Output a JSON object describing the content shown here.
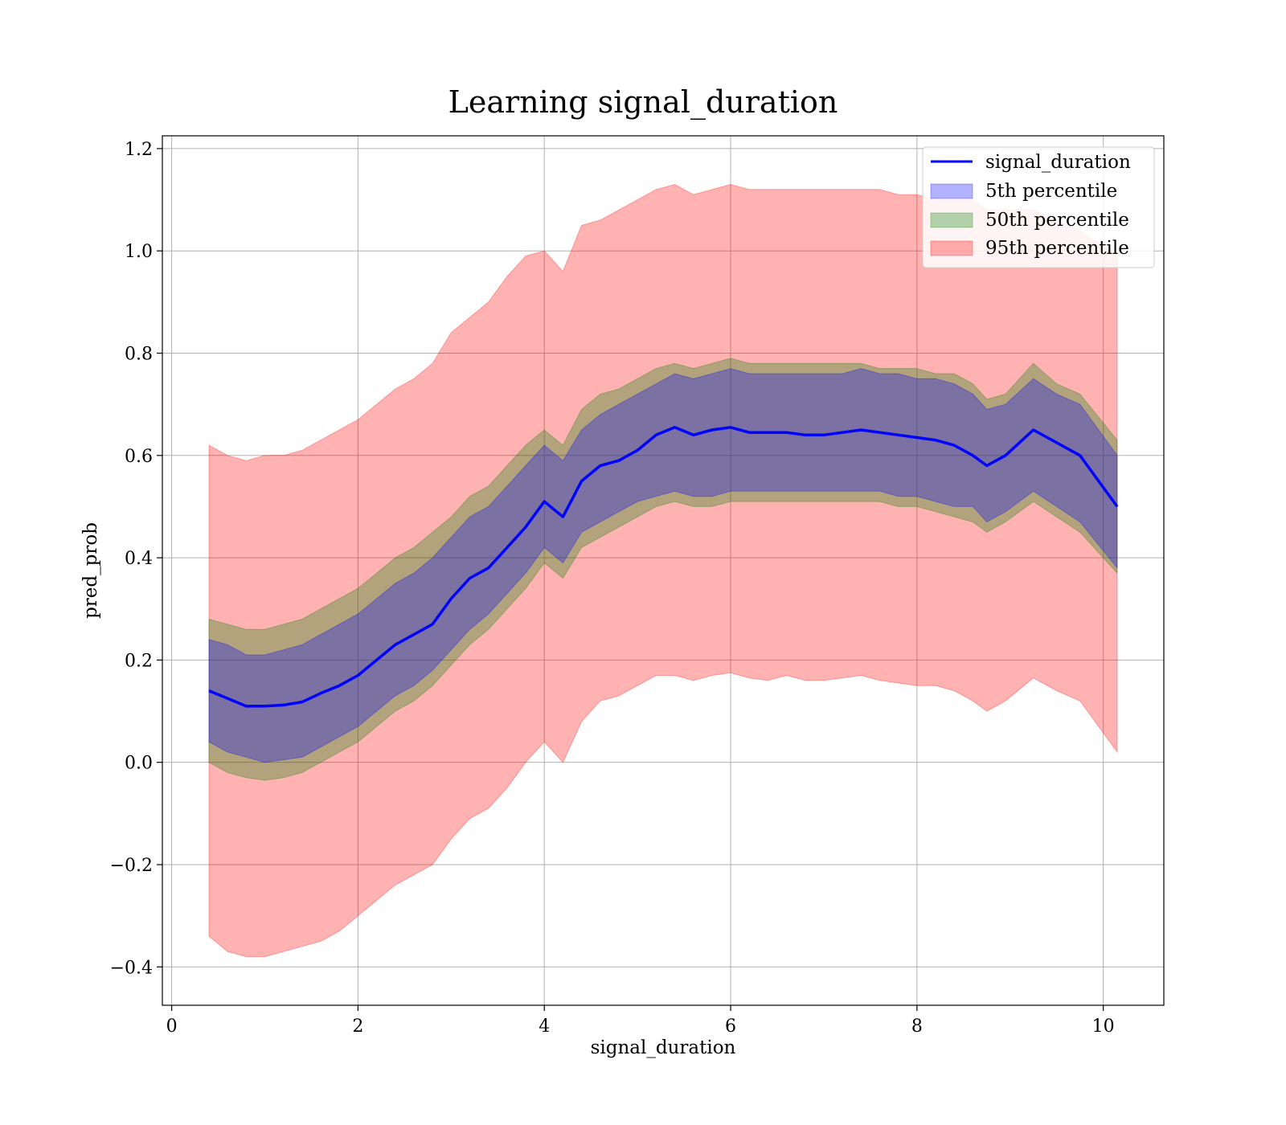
{
  "chart_data": {
    "type": "line",
    "title": "Learning signal_duration",
    "xlabel": "signal_duration",
    "ylabel": "pred_prob",
    "xlim": [
      -0.1,
      10.65
    ],
    "ylim": [
      -0.475,
      1.225
    ],
    "xticks": [
      0,
      2,
      4,
      6,
      8,
      10
    ],
    "yticks": [
      -0.4,
      -0.2,
      0.0,
      0.2,
      0.4,
      0.6,
      0.8,
      1.0,
      1.2
    ],
    "xtick_labels": [
      "0",
      "2",
      "4",
      "6",
      "8",
      "10"
    ],
    "ytick_labels": [
      "−0.4",
      "−0.2",
      "0.0",
      "0.2",
      "0.4",
      "0.6",
      "0.8",
      "1.0",
      "1.2"
    ],
    "grid": true,
    "legend_position": "top-right",
    "x": [
      0.4,
      0.6,
      0.8,
      1.0,
      1.2,
      1.4,
      1.6,
      1.8,
      2.0,
      2.2,
      2.4,
      2.6,
      2.8,
      3.0,
      3.2,
      3.4,
      3.6,
      3.8,
      4.0,
      4.2,
      4.4,
      4.6,
      4.8,
      5.0,
      5.2,
      5.4,
      5.6,
      5.8,
      6.0,
      6.2,
      6.4,
      6.6,
      6.8,
      7.0,
      7.2,
      7.4,
      7.6,
      7.8,
      8.0,
      8.2,
      8.4,
      8.6,
      8.75,
      8.95,
      9.25,
      9.5,
      9.75,
      10.15
    ],
    "series": [
      {
        "name": "signal_duration",
        "kind": "line",
        "color": "#0000ff",
        "values": [
          0.14,
          0.125,
          0.11,
          0.11,
          0.112,
          0.118,
          0.135,
          0.15,
          0.17,
          0.2,
          0.23,
          0.25,
          0.27,
          0.32,
          0.36,
          0.38,
          0.42,
          0.46,
          0.51,
          0.48,
          0.55,
          0.58,
          0.59,
          0.61,
          0.64,
          0.655,
          0.64,
          0.65,
          0.655,
          0.645,
          0.645,
          0.645,
          0.64,
          0.64,
          0.645,
          0.65,
          0.645,
          0.64,
          0.635,
          0.63,
          0.62,
          0.6,
          0.58,
          0.6,
          0.65,
          0.625,
          0.6,
          0.5
        ]
      },
      {
        "name": "5th percentile",
        "kind": "band",
        "color": "#0000ff",
        "opacity": 0.3,
        "lower": [
          0.04,
          0.02,
          0.01,
          0.0,
          0.005,
          0.01,
          0.03,
          0.05,
          0.07,
          0.1,
          0.13,
          0.15,
          0.18,
          0.22,
          0.26,
          0.29,
          0.33,
          0.37,
          0.42,
          0.39,
          0.45,
          0.47,
          0.49,
          0.51,
          0.52,
          0.53,
          0.52,
          0.52,
          0.53,
          0.53,
          0.53,
          0.53,
          0.53,
          0.53,
          0.53,
          0.53,
          0.53,
          0.52,
          0.52,
          0.51,
          0.5,
          0.5,
          0.47,
          0.49,
          0.53,
          0.5,
          0.47,
          0.38
        ],
        "upper": [
          0.24,
          0.23,
          0.21,
          0.21,
          0.22,
          0.23,
          0.25,
          0.27,
          0.29,
          0.32,
          0.35,
          0.37,
          0.4,
          0.44,
          0.48,
          0.5,
          0.54,
          0.58,
          0.62,
          0.59,
          0.65,
          0.68,
          0.7,
          0.72,
          0.74,
          0.76,
          0.75,
          0.76,
          0.77,
          0.76,
          0.76,
          0.76,
          0.76,
          0.76,
          0.76,
          0.77,
          0.76,
          0.76,
          0.75,
          0.75,
          0.74,
          0.72,
          0.69,
          0.7,
          0.75,
          0.72,
          0.7,
          0.6
        ]
      },
      {
        "name": "50th percentile",
        "kind": "band",
        "color": "#008000",
        "opacity": 0.3,
        "lower": [
          0.0,
          -0.02,
          -0.03,
          -0.035,
          -0.03,
          -0.02,
          0.0,
          0.02,
          0.04,
          0.07,
          0.1,
          0.12,
          0.15,
          0.19,
          0.23,
          0.26,
          0.3,
          0.34,
          0.39,
          0.36,
          0.42,
          0.44,
          0.46,
          0.48,
          0.5,
          0.51,
          0.5,
          0.5,
          0.51,
          0.51,
          0.51,
          0.51,
          0.51,
          0.51,
          0.51,
          0.51,
          0.51,
          0.5,
          0.5,
          0.49,
          0.48,
          0.47,
          0.45,
          0.47,
          0.51,
          0.48,
          0.45,
          0.37
        ],
        "upper": [
          0.28,
          0.27,
          0.26,
          0.26,
          0.27,
          0.28,
          0.3,
          0.32,
          0.34,
          0.37,
          0.4,
          0.42,
          0.45,
          0.48,
          0.52,
          0.54,
          0.58,
          0.62,
          0.65,
          0.62,
          0.69,
          0.72,
          0.73,
          0.75,
          0.77,
          0.78,
          0.77,
          0.78,
          0.79,
          0.78,
          0.78,
          0.78,
          0.78,
          0.78,
          0.78,
          0.78,
          0.77,
          0.77,
          0.77,
          0.76,
          0.76,
          0.74,
          0.71,
          0.72,
          0.78,
          0.74,
          0.72,
          0.63
        ]
      },
      {
        "name": "95th percentile",
        "kind": "band",
        "color": "#ff0000",
        "opacity": 0.3,
        "lower": [
          -0.34,
          -0.37,
          -0.38,
          -0.38,
          -0.37,
          -0.36,
          -0.35,
          -0.33,
          -0.3,
          -0.27,
          -0.24,
          -0.22,
          -0.2,
          -0.15,
          -0.11,
          -0.09,
          -0.05,
          0.0,
          0.04,
          0.0,
          0.08,
          0.12,
          0.13,
          0.15,
          0.17,
          0.17,
          0.16,
          0.17,
          0.175,
          0.165,
          0.16,
          0.17,
          0.16,
          0.16,
          0.165,
          0.17,
          0.16,
          0.155,
          0.15,
          0.15,
          0.14,
          0.12,
          0.1,
          0.12,
          0.165,
          0.14,
          0.12,
          0.02
        ],
        "upper": [
          0.62,
          0.6,
          0.59,
          0.6,
          0.6,
          0.61,
          0.63,
          0.65,
          0.67,
          0.7,
          0.73,
          0.75,
          0.78,
          0.84,
          0.87,
          0.9,
          0.95,
          0.99,
          1.0,
          0.96,
          1.05,
          1.06,
          1.08,
          1.1,
          1.12,
          1.13,
          1.11,
          1.12,
          1.13,
          1.12,
          1.12,
          1.12,
          1.12,
          1.12,
          1.12,
          1.12,
          1.12,
          1.11,
          1.11,
          1.1,
          1.1,
          1.1,
          1.08,
          1.08,
          1.08,
          1.06,
          1.04,
          0.99
        ]
      }
    ],
    "legend": [
      "signal_duration",
      "5th percentile",
      "50th percentile",
      "95th percentile"
    ]
  }
}
